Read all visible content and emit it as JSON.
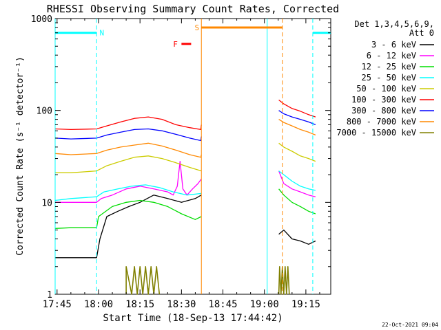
{
  "chart_data": {
    "type": "line",
    "title": "RHESSI Observing Summary Count Rates, Corrected",
    "ylabel": "Corrected Count Rate (s⁻¹ detector⁻¹)",
    "xlabel": "Start Time (18-Sep-13 17:44:42)",
    "yscale": "log",
    "ylim": [
      1,
      1000
    ],
    "xlim_minutes": [
      -0.7,
      99.0
    ],
    "x_ticks": [
      {
        "label": "17:45",
        "minutes": 0
      },
      {
        "label": "18:00",
        "minutes": 15
      },
      {
        "label": "18:15",
        "minutes": 30
      },
      {
        "label": "18:30",
        "minutes": 45
      },
      {
        "label": "18:45",
        "minutes": 60
      },
      {
        "label": "19:00",
        "minutes": 75
      },
      {
        "label": "19:15",
        "minutes": 90
      }
    ],
    "y_ticks": [
      {
        "label": "1",
        "value": 1
      },
      {
        "label": "10",
        "value": 10
      },
      {
        "label": "100",
        "value": 100
      },
      {
        "label": "1000",
        "value": 1000
      }
    ],
    "legend": {
      "placement": "right",
      "header": [
        "Det 1,3,4,5,6,9,",
        "Att 0"
      ]
    },
    "series": [
      {
        "name": "3 - 6 keV",
        "color": "#000000",
        "points": [
          [
            -0.7,
            2.5
          ],
          [
            5,
            2.5
          ],
          [
            14.3,
            2.5
          ],
          [
            15.5,
            4
          ],
          [
            18,
            7
          ],
          [
            22,
            8
          ],
          [
            26,
            9
          ],
          [
            30,
            10
          ],
          [
            35,
            12
          ],
          [
            40,
            11
          ],
          [
            45,
            10
          ],
          [
            50,
            11
          ],
          [
            52.2,
            12
          ],
          [
            52.5,
            null
          ],
          [
            79.8,
            null
          ],
          [
            80.2,
            4.5
          ],
          [
            82,
            5
          ],
          [
            85,
            4
          ],
          [
            88,
            3.8
          ],
          [
            91,
            3.5
          ],
          [
            93.5,
            3.8
          ]
        ]
      },
      {
        "name": "6 - 12 keV",
        "color": "#ff00ff",
        "points": [
          [
            -0.7,
            10
          ],
          [
            5,
            10
          ],
          [
            14.3,
            10
          ],
          [
            16,
            11
          ],
          [
            20,
            12
          ],
          [
            25,
            14
          ],
          [
            30,
            15
          ],
          [
            35,
            14
          ],
          [
            40,
            13
          ],
          [
            42,
            12
          ],
          [
            43.5,
            15
          ],
          [
            44.5,
            28
          ],
          [
            45.5,
            14
          ],
          [
            47,
            12
          ],
          [
            49,
            14
          ],
          [
            51,
            16
          ],
          [
            52.2,
            18
          ],
          [
            52.5,
            null
          ],
          [
            79.8,
            null
          ],
          [
            80.2,
            22
          ],
          [
            82,
            16
          ],
          [
            85,
            14
          ],
          [
            88,
            13
          ],
          [
            91,
            12
          ],
          [
            93.5,
            11.5
          ]
        ]
      },
      {
        "name": "12 - 25 keV",
        "color": "#00dd00",
        "points": [
          [
            -0.7,
            5.2
          ],
          [
            5,
            5.3
          ],
          [
            14.3,
            5.3
          ],
          [
            15,
            7
          ],
          [
            20,
            9
          ],
          [
            25,
            10
          ],
          [
            30,
            10.5
          ],
          [
            35,
            10
          ],
          [
            40,
            9
          ],
          [
            45,
            7.5
          ],
          [
            50,
            6.5
          ],
          [
            52.2,
            7
          ],
          [
            52.5,
            null
          ],
          [
            79.8,
            null
          ],
          [
            80.2,
            14
          ],
          [
            82,
            12
          ],
          [
            85,
            10
          ],
          [
            88,
            9
          ],
          [
            91,
            8
          ],
          [
            93.5,
            7.5
          ]
        ]
      },
      {
        "name": "25 - 50 keV",
        "color": "#00ffff",
        "points": [
          [
            -0.7,
            10.5
          ],
          [
            5,
            11
          ],
          [
            14.3,
            11.5
          ],
          [
            17,
            13
          ],
          [
            22,
            14
          ],
          [
            27,
            15
          ],
          [
            32,
            15.5
          ],
          [
            37,
            14.5
          ],
          [
            42,
            13
          ],
          [
            47,
            12
          ],
          [
            52.2,
            12.5
          ],
          [
            52.5,
            null
          ],
          [
            79.8,
            null
          ],
          [
            80.2,
            22
          ],
          [
            82,
            20
          ],
          [
            85,
            17
          ],
          [
            88,
            15
          ],
          [
            91,
            14
          ],
          [
            93.5,
            13.5
          ]
        ]
      },
      {
        "name": "50 - 100 keV",
        "color": "#cccc00",
        "points": [
          [
            -0.7,
            21
          ],
          [
            5,
            21
          ],
          [
            14.3,
            22
          ],
          [
            18,
            25
          ],
          [
            23,
            28
          ],
          [
            28,
            31
          ],
          [
            33,
            32
          ],
          [
            38,
            30
          ],
          [
            43,
            27
          ],
          [
            48,
            24
          ],
          [
            52.2,
            22
          ],
          [
            52.5,
            null
          ],
          [
            79.8,
            null
          ],
          [
            80.2,
            44
          ],
          [
            82,
            40
          ],
          [
            85,
            36
          ],
          [
            88,
            32
          ],
          [
            91,
            30
          ],
          [
            93.5,
            28
          ]
        ]
      },
      {
        "name": "100 - 300 keV",
        "color": "#ff0000",
        "points": [
          [
            -0.7,
            63
          ],
          [
            5,
            62
          ],
          [
            14.3,
            63
          ],
          [
            18,
            68
          ],
          [
            23,
            75
          ],
          [
            28,
            82
          ],
          [
            33,
            85
          ],
          [
            38,
            80
          ],
          [
            43,
            70
          ],
          [
            48,
            65
          ],
          [
            52,
            62
          ],
          [
            52.2,
            70
          ],
          [
            52.5,
            null
          ],
          [
            79.8,
            null
          ],
          [
            80.2,
            130
          ],
          [
            82,
            118
          ],
          [
            85,
            105
          ],
          [
            88,
            98
          ],
          [
            91,
            90
          ],
          [
            93.5,
            85
          ]
        ]
      },
      {
        "name": "300 - 800 keV",
        "color": "#0000ff",
        "points": [
          [
            -0.7,
            50
          ],
          [
            5,
            49
          ],
          [
            14.3,
            50
          ],
          [
            18,
            54
          ],
          [
            23,
            58
          ],
          [
            28,
            62
          ],
          [
            33,
            63
          ],
          [
            38,
            60
          ],
          [
            43,
            55
          ],
          [
            48,
            50
          ],
          [
            52,
            47
          ],
          [
            52.2,
            52
          ],
          [
            52.5,
            null
          ],
          [
            79.8,
            null
          ],
          [
            80.2,
            100
          ],
          [
            82,
            92
          ],
          [
            85,
            85
          ],
          [
            88,
            80
          ],
          [
            91,
            75
          ],
          [
            93.5,
            70
          ]
        ]
      },
      {
        "name": "800 - 7000 keV",
        "color": "#ff8800",
        "points": [
          [
            -0.7,
            34
          ],
          [
            5,
            33
          ],
          [
            14.3,
            34
          ],
          [
            18,
            37
          ],
          [
            23,
            40
          ],
          [
            28,
            42
          ],
          [
            33,
            44
          ],
          [
            38,
            41
          ],
          [
            43,
            37
          ],
          [
            48,
            33
          ],
          [
            52,
            31
          ],
          [
            52.2,
            33
          ],
          [
            52.5,
            null
          ],
          [
            79.8,
            null
          ],
          [
            80.2,
            80
          ],
          [
            82,
            74
          ],
          [
            85,
            68
          ],
          [
            88,
            62
          ],
          [
            91,
            58
          ],
          [
            93.5,
            54
          ]
        ]
      },
      {
        "name": "7000 - 15000 keV",
        "color": "#808000",
        "points": [
          [
            25,
            1
          ],
          [
            25,
            2
          ],
          [
            27,
            1
          ],
          [
            28,
            2
          ],
          [
            29,
            1
          ],
          [
            30,
            2
          ],
          [
            31,
            1
          ],
          [
            32,
            2
          ],
          [
            33,
            1
          ],
          [
            34,
            2
          ],
          [
            35,
            1
          ],
          [
            36,
            2
          ],
          [
            37,
            1
          ],
          [
            37.5,
            null
          ],
          [
            80.2,
            1
          ],
          [
            80.5,
            2
          ],
          [
            81,
            1
          ],
          [
            81.5,
            2
          ],
          [
            82,
            1
          ],
          [
            82.5,
            2
          ],
          [
            83,
            1
          ],
          [
            83.5,
            2
          ],
          [
            84,
            1
          ]
        ]
      }
    ],
    "annotations": [
      {
        "label": "N",
        "color": "#00ffff",
        "y": 700,
        "segments": [
          [
            -0.7,
            14.3
          ],
          [
            92.5,
            99
          ]
        ],
        "vlines_solid": [
          -0.7,
          76
        ],
        "vlines_dashed": [
          14.3,
          92.5
        ],
        "label_minutes": 16.2
      },
      {
        "label": "S",
        "color": "#ff8800",
        "y": 800,
        "segments": [
          [
            52.2,
            81.5
          ]
        ],
        "vlines_solid": [
          52.2
        ],
        "vlines_dashed": [
          81.5
        ],
        "label_minutes": 50.6
      },
      {
        "label": "F",
        "color": "#ff0000",
        "y": 530,
        "segments": [
          [
            45,
            48.5
          ]
        ],
        "label_minutes": 42.8
      }
    ],
    "footer_stamp": "22-Oct-2021 09:04"
  }
}
